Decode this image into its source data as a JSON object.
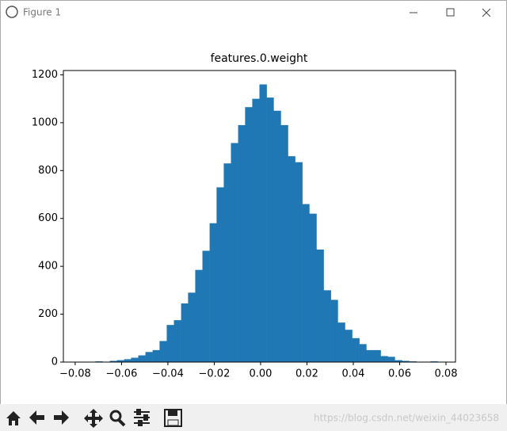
{
  "window": {
    "title": "Figure 1"
  },
  "chart_data": {
    "type": "histogram",
    "title": "features.0.weight",
    "color": "#1f77b4",
    "bins": [
      -0.0774,
      -0.0743,
      -0.0713,
      -0.0682,
      -0.0651,
      -0.062,
      -0.0589,
      -0.0559,
      -0.0528,
      -0.0497,
      -0.0466,
      -0.0436,
      -0.0405,
      -0.0374,
      -0.0343,
      -0.0313,
      -0.0282,
      -0.0251,
      -0.022,
      -0.019,
      -0.0159,
      -0.0128,
      -0.0097,
      -0.0067,
      -0.0036,
      -0.0005,
      0.0026,
      0.0056,
      0.0087,
      0.0118,
      0.0149,
      0.018,
      0.021,
      0.0241,
      0.0272,
      0.0303,
      0.0333,
      0.0364,
      0.0395,
      0.0426,
      0.0456,
      0.0487,
      0.0518,
      0.0549,
      0.0579,
      0.061,
      0.0641,
      0.0672,
      0.0702,
      0.0733,
      0.0764
    ],
    "values": [
      1,
      0,
      3,
      1,
      5,
      8,
      12,
      18,
      28,
      42,
      50,
      88,
      155,
      175,
      245,
      290,
      385,
      465,
      580,
      730,
      830,
      915,
      990,
      1065,
      1100,
      1160,
      1105,
      1050,
      990,
      860,
      835,
      660,
      620,
      470,
      300,
      260,
      165,
      135,
      100,
      75,
      50,
      50,
      25,
      22,
      8,
      5,
      3,
      0,
      1,
      3
    ],
    "xlim": [
      -0.0851,
      0.0841
    ],
    "xticks": [
      {
        "value": -0.08,
        "label": "−0.08"
      },
      {
        "value": -0.06,
        "label": "−0.06"
      },
      {
        "value": -0.04,
        "label": "−0.04"
      },
      {
        "value": -0.02,
        "label": "−0.02"
      },
      {
        "value": 0,
        "label": "0.00"
      },
      0.02,
      0.04,
      0.06,
      0.08
    ],
    "ylim": [
      0,
      1218
    ],
    "yticks": [
      0,
      200,
      400,
      600,
      800,
      1000,
      1200
    ]
  },
  "watermark": "https://blog.csdn.net/weixin_44023658"
}
